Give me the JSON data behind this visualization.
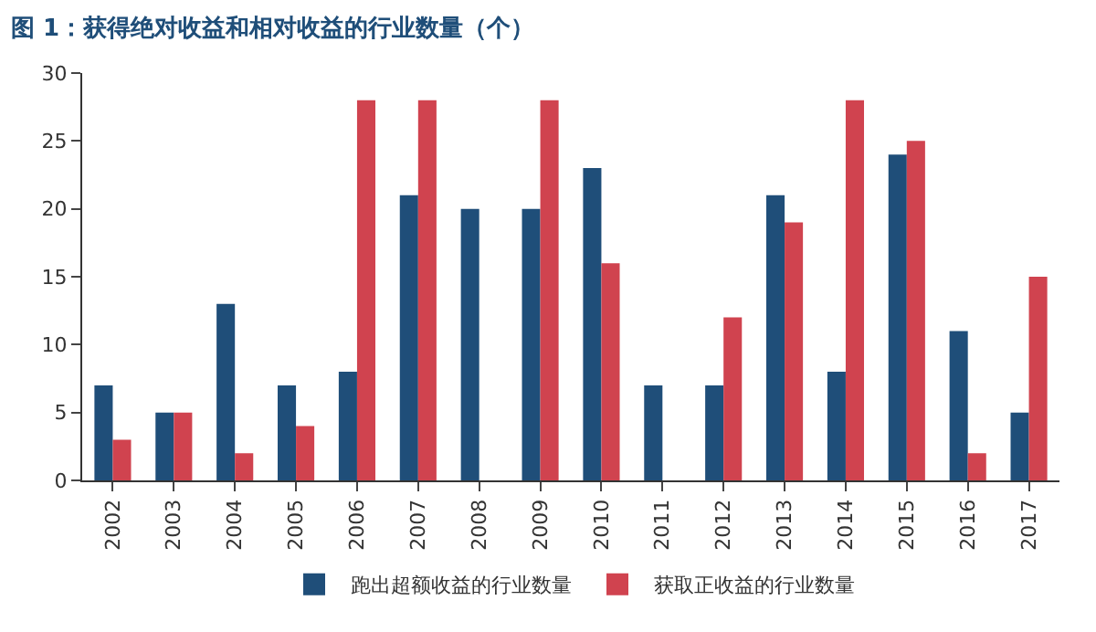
{
  "chart_data": {
    "type": "bar",
    "title": "图 1：获得绝对收益和相对收益的行业数量（个）",
    "categories": [
      "2002",
      "2003",
      "2004",
      "2005",
      "2006",
      "2007",
      "2008",
      "2009",
      "2010",
      "2011",
      "2012",
      "2013",
      "2014",
      "2015",
      "2016",
      "2017"
    ],
    "series": [
      {
        "name": "跑出超额收益的行业数量",
        "color": "#1f4e79",
        "values": [
          7,
          5,
          13,
          7,
          8,
          21,
          20,
          20,
          23,
          7,
          7,
          21,
          8,
          24,
          11,
          5
        ]
      },
      {
        "name": "获取正收益的行业数量",
        "color": "#d0434f",
        "values": [
          3,
          5,
          2,
          4,
          28,
          28,
          0,
          28,
          16,
          0,
          12,
          19,
          28,
          25,
          2,
          15
        ]
      }
    ],
    "ylim": [
      0,
      30
    ],
    "yticks": [
      0,
      5,
      10,
      15,
      20,
      25,
      30
    ],
    "legend": "bottom"
  }
}
